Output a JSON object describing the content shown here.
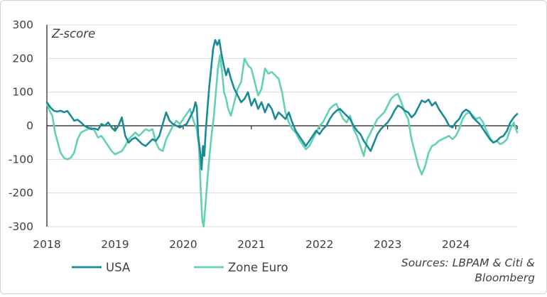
{
  "chart_data": {
    "type": "line",
    "title": "",
    "ylabel": "Z-score",
    "xlabel": "",
    "ylim": [
      -300,
      300
    ],
    "yticks": [
      300,
      200,
      100,
      0,
      -100,
      -200,
      -300
    ],
    "yticks_labels": [
      "300",
      "200",
      "100",
      "0",
      "-100",
      "-200",
      "-300"
    ],
    "xlim": [
      2018,
      2024.9
    ],
    "xticks": [
      2018,
      2019,
      2020,
      2021,
      2022,
      2023,
      2024
    ],
    "xticks_labels": [
      "2018",
      "2019",
      "2020",
      "2021",
      "2022",
      "2023",
      "2024"
    ],
    "grid": "horizontal",
    "legend_position": "bottom",
    "source": [
      "Sources: LBPAM & Citi &",
      "Bloomberg"
    ],
    "series": [
      {
        "name": "USA",
        "color": "#1a8b96",
        "points": [
          [
            2018.0,
            70
          ],
          [
            2018.05,
            55
          ],
          [
            2018.1,
            45
          ],
          [
            2018.15,
            42
          ],
          [
            2018.2,
            45
          ],
          [
            2018.25,
            40
          ],
          [
            2018.3,
            44
          ],
          [
            2018.35,
            30
          ],
          [
            2018.4,
            15
          ],
          [
            2018.45,
            18
          ],
          [
            2018.5,
            10
          ],
          [
            2018.55,
            0
          ],
          [
            2018.6,
            -5
          ],
          [
            2018.65,
            -10
          ],
          [
            2018.7,
            -8
          ],
          [
            2018.75,
            -12
          ],
          [
            2018.8,
            5
          ],
          [
            2018.85,
            0
          ],
          [
            2018.9,
            10
          ],
          [
            2018.95,
            -5
          ],
          [
            2019.0,
            -15
          ],
          [
            2019.05,
            0
          ],
          [
            2019.1,
            25
          ],
          [
            2019.15,
            -30
          ],
          [
            2019.2,
            -50
          ],
          [
            2019.25,
            -40
          ],
          [
            2019.3,
            -35
          ],
          [
            2019.35,
            -45
          ],
          [
            2019.4,
            -55
          ],
          [
            2019.45,
            -60
          ],
          [
            2019.5,
            -50
          ],
          [
            2019.55,
            -40
          ],
          [
            2019.6,
            -45
          ],
          [
            2019.65,
            -30
          ],
          [
            2019.7,
            5
          ],
          [
            2019.75,
            40
          ],
          [
            2019.8,
            15
          ],
          [
            2019.85,
            5
          ],
          [
            2019.9,
            0
          ],
          [
            2019.95,
            -5
          ],
          [
            2020.0,
            0
          ],
          [
            2020.05,
            5
          ],
          [
            2020.1,
            25
          ],
          [
            2020.15,
            45
          ],
          [
            2020.18,
            70
          ],
          [
            2020.2,
            55
          ],
          [
            2020.22,
            -30
          ],
          [
            2020.25,
            -80
          ],
          [
            2020.27,
            -130
          ],
          [
            2020.29,
            -60
          ],
          [
            2020.31,
            -90
          ],
          [
            2020.33,
            -20
          ],
          [
            2020.36,
            60
          ],
          [
            2020.38,
            110
          ],
          [
            2020.41,
            170
          ],
          [
            2020.44,
            230
          ],
          [
            2020.47,
            255
          ],
          [
            2020.5,
            240
          ],
          [
            2020.53,
            255
          ],
          [
            2020.56,
            215
          ],
          [
            2020.6,
            175
          ],
          [
            2020.63,
            150
          ],
          [
            2020.66,
            170
          ],
          [
            2020.7,
            140
          ],
          [
            2020.75,
            110
          ],
          [
            2020.8,
            90
          ],
          [
            2020.85,
            70
          ],
          [
            2020.9,
            80
          ],
          [
            2020.95,
            100
          ],
          [
            2021.0,
            60
          ],
          [
            2021.05,
            80
          ],
          [
            2021.1,
            50
          ],
          [
            2021.15,
            70
          ],
          [
            2021.2,
            40
          ],
          [
            2021.25,
            65
          ],
          [
            2021.3,
            50
          ],
          [
            2021.35,
            20
          ],
          [
            2021.4,
            40
          ],
          [
            2021.45,
            30
          ],
          [
            2021.5,
            20
          ],
          [
            2021.55,
            40
          ],
          [
            2021.6,
            10
          ],
          [
            2021.65,
            -15
          ],
          [
            2021.7,
            -30
          ],
          [
            2021.75,
            -45
          ],
          [
            2021.8,
            -60
          ],
          [
            2021.85,
            -45
          ],
          [
            2021.9,
            -30
          ],
          [
            2021.95,
            -15
          ],
          [
            2022.0,
            -25
          ],
          [
            2022.05,
            -10
          ],
          [
            2022.1,
            0
          ],
          [
            2022.15,
            20
          ],
          [
            2022.2,
            35
          ],
          [
            2022.25,
            45
          ],
          [
            2022.3,
            50
          ],
          [
            2022.35,
            40
          ],
          [
            2022.4,
            30
          ],
          [
            2022.45,
            20
          ],
          [
            2022.5,
            0
          ],
          [
            2022.55,
            -15
          ],
          [
            2022.6,
            -25
          ],
          [
            2022.65,
            -45
          ],
          [
            2022.7,
            -60
          ],
          [
            2022.75,
            -75
          ],
          [
            2022.8,
            -50
          ],
          [
            2022.85,
            -25
          ],
          [
            2022.9,
            -10
          ],
          [
            2022.95,
            0
          ],
          [
            2023.0,
            10
          ],
          [
            2023.05,
            25
          ],
          [
            2023.1,
            45
          ],
          [
            2023.15,
            60
          ],
          [
            2023.2,
            55
          ],
          [
            2023.25,
            45
          ],
          [
            2023.3,
            40
          ],
          [
            2023.35,
            25
          ],
          [
            2023.4,
            35
          ],
          [
            2023.45,
            55
          ],
          [
            2023.5,
            75
          ],
          [
            2023.55,
            70
          ],
          [
            2023.6,
            78
          ],
          [
            2023.65,
            60
          ],
          [
            2023.7,
            70
          ],
          [
            2023.75,
            50
          ],
          [
            2023.8,
            35
          ],
          [
            2023.85,
            20
          ],
          [
            2023.9,
            0
          ],
          [
            2023.95,
            -5
          ],
          [
            2024.0,
            10
          ],
          [
            2024.05,
            20
          ],
          [
            2024.1,
            40
          ],
          [
            2024.15,
            48
          ],
          [
            2024.2,
            42
          ],
          [
            2024.25,
            25
          ],
          [
            2024.3,
            15
          ],
          [
            2024.35,
            5
          ],
          [
            2024.4,
            -10
          ],
          [
            2024.45,
            -25
          ],
          [
            2024.5,
            -40
          ],
          [
            2024.55,
            -50
          ],
          [
            2024.6,
            -45
          ],
          [
            2024.65,
            -35
          ],
          [
            2024.7,
            -30
          ],
          [
            2024.75,
            -15
          ],
          [
            2024.8,
            10
          ],
          [
            2024.85,
            25
          ],
          [
            2024.9,
            35
          ]
        ]
      },
      {
        "name": "Zone Euro",
        "color": "#62d2b4",
        "points": [
          [
            2018.0,
            65
          ],
          [
            2018.04,
            45
          ],
          [
            2018.08,
            30
          ],
          [
            2018.12,
            -20
          ],
          [
            2018.16,
            -50
          ],
          [
            2018.2,
            -80
          ],
          [
            2018.25,
            -95
          ],
          [
            2018.3,
            -100
          ],
          [
            2018.35,
            -95
          ],
          [
            2018.4,
            -80
          ],
          [
            2018.45,
            -40
          ],
          [
            2018.5,
            -20
          ],
          [
            2018.55,
            -15
          ],
          [
            2018.6,
            -10
          ],
          [
            2018.65,
            -5
          ],
          [
            2018.7,
            -15
          ],
          [
            2018.75,
            -35
          ],
          [
            2018.8,
            -30
          ],
          [
            2018.85,
            -45
          ],
          [
            2018.9,
            -60
          ],
          [
            2018.95,
            -75
          ],
          [
            2019.0,
            -85
          ],
          [
            2019.05,
            -80
          ],
          [
            2019.1,
            -75
          ],
          [
            2019.15,
            -60
          ],
          [
            2019.2,
            -40
          ],
          [
            2019.25,
            -30
          ],
          [
            2019.3,
            -20
          ],
          [
            2019.35,
            -30
          ],
          [
            2019.4,
            -20
          ],
          [
            2019.45,
            -10
          ],
          [
            2019.5,
            -15
          ],
          [
            2019.55,
            -10
          ],
          [
            2019.6,
            -50
          ],
          [
            2019.65,
            -70
          ],
          [
            2019.7,
            -75
          ],
          [
            2019.75,
            -40
          ],
          [
            2019.8,
            -20
          ],
          [
            2019.85,
            0
          ],
          [
            2019.9,
            15
          ],
          [
            2019.95,
            5
          ],
          [
            2020.0,
            20
          ],
          [
            2020.05,
            35
          ],
          [
            2020.1,
            50
          ],
          [
            2020.15,
            15
          ],
          [
            2020.18,
            0
          ],
          [
            2020.2,
            -10
          ],
          [
            2020.23,
            -60
          ],
          [
            2020.26,
            -200
          ],
          [
            2020.28,
            -280
          ],
          [
            2020.3,
            -300
          ],
          [
            2020.33,
            -230
          ],
          [
            2020.36,
            -150
          ],
          [
            2020.39,
            -80
          ],
          [
            2020.42,
            -20
          ],
          [
            2020.45,
            30
          ],
          [
            2020.48,
            100
          ],
          [
            2020.51,
            170
          ],
          [
            2020.54,
            210
          ],
          [
            2020.57,
            160
          ],
          [
            2020.6,
            100
          ],
          [
            2020.63,
            80
          ],
          [
            2020.66,
            50
          ],
          [
            2020.7,
            30
          ],
          [
            2020.75,
            70
          ],
          [
            2020.8,
            110
          ],
          [
            2020.85,
            130
          ],
          [
            2020.9,
            200
          ],
          [
            2020.95,
            180
          ],
          [
            2021.0,
            170
          ],
          [
            2021.05,
            130
          ],
          [
            2021.1,
            90
          ],
          [
            2021.15,
            110
          ],
          [
            2021.2,
            170
          ],
          [
            2021.25,
            155
          ],
          [
            2021.3,
            160
          ],
          [
            2021.35,
            150
          ],
          [
            2021.4,
            140
          ],
          [
            2021.45,
            100
          ],
          [
            2021.5,
            40
          ],
          [
            2021.55,
            10
          ],
          [
            2021.6,
            -10
          ],
          [
            2021.65,
            -20
          ],
          [
            2021.7,
            -40
          ],
          [
            2021.75,
            -55
          ],
          [
            2021.8,
            -70
          ],
          [
            2021.85,
            -60
          ],
          [
            2021.9,
            -40
          ],
          [
            2021.95,
            -20
          ],
          [
            2022.0,
            0
          ],
          [
            2022.05,
            10
          ],
          [
            2022.1,
            30
          ],
          [
            2022.15,
            50
          ],
          [
            2022.2,
            60
          ],
          [
            2022.25,
            65
          ],
          [
            2022.3,
            40
          ],
          [
            2022.35,
            20
          ],
          [
            2022.4,
            10
          ],
          [
            2022.45,
            30
          ],
          [
            2022.5,
            -10
          ],
          [
            2022.55,
            -30
          ],
          [
            2022.6,
            -60
          ],
          [
            2022.65,
            -90
          ],
          [
            2022.7,
            -40
          ],
          [
            2022.75,
            -20
          ],
          [
            2022.8,
            0
          ],
          [
            2022.85,
            20
          ],
          [
            2022.9,
            30
          ],
          [
            2022.95,
            40
          ],
          [
            2023.0,
            60
          ],
          [
            2023.05,
            80
          ],
          [
            2023.1,
            90
          ],
          [
            2023.15,
            95
          ],
          [
            2023.2,
            70
          ],
          [
            2023.25,
            40
          ],
          [
            2023.3,
            20
          ],
          [
            2023.35,
            -40
          ],
          [
            2023.4,
            -80
          ],
          [
            2023.45,
            -120
          ],
          [
            2023.5,
            -145
          ],
          [
            2023.55,
            -120
          ],
          [
            2023.6,
            -80
          ],
          [
            2023.65,
            -60
          ],
          [
            2023.7,
            -55
          ],
          [
            2023.75,
            -45
          ],
          [
            2023.8,
            -40
          ],
          [
            2023.85,
            -35
          ],
          [
            2023.9,
            -30
          ],
          [
            2023.95,
            -40
          ],
          [
            2024.0,
            -30
          ],
          [
            2024.05,
            -10
          ],
          [
            2024.1,
            20
          ],
          [
            2024.15,
            35
          ],
          [
            2024.2,
            40
          ],
          [
            2024.25,
            30
          ],
          [
            2024.3,
            20
          ],
          [
            2024.35,
            25
          ],
          [
            2024.4,
            10
          ],
          [
            2024.45,
            -15
          ],
          [
            2024.5,
            -35
          ],
          [
            2024.55,
            -50
          ],
          [
            2024.6,
            -45
          ],
          [
            2024.65,
            -55
          ],
          [
            2024.7,
            -50
          ],
          [
            2024.75,
            -40
          ],
          [
            2024.8,
            -10
          ],
          [
            2024.85,
            10
          ],
          [
            2024.9,
            -20
          ]
        ]
      }
    ]
  }
}
